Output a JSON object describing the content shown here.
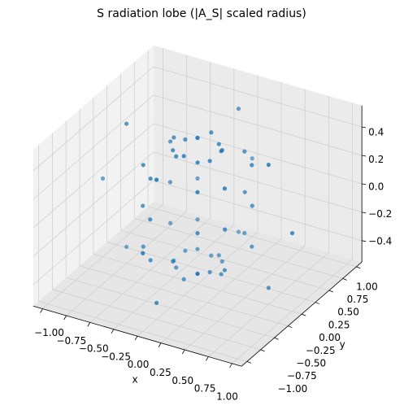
{
  "chart_data": {
    "type": "scatter3d",
    "title": "S radiation lobe (|A_S| scaled radius)",
    "xlabel": "x",
    "ylabel": "y",
    "color": "#1f77b4",
    "xlim": [
      -1.1,
      1.1
    ],
    "ylim": [
      -1.1,
      1.1
    ],
    "zlim": [
      -0.55,
      0.55
    ],
    "xticks": [
      {
        "value": -1,
        "label": "−1.00"
      },
      {
        "value": -0.75,
        "label": "−0.75"
      },
      {
        "value": -0.5,
        "label": "−0.50"
      },
      {
        "value": -0.25,
        "label": "−0.25"
      },
      {
        "value": 0,
        "label": "0.00"
      },
      {
        "value": 0.25,
        "label": "0.25"
      },
      {
        "value": 0.5,
        "label": "0.50"
      },
      {
        "value": 0.75,
        "label": "0.75"
      },
      {
        "value": 1,
        "label": "1.00"
      }
    ],
    "yticks": [
      {
        "value": -1,
        "label": "−1.00"
      },
      {
        "value": -0.75,
        "label": "−0.75"
      },
      {
        "value": -0.5,
        "label": "−0.50"
      },
      {
        "value": -0.25,
        "label": "−0.25"
      },
      {
        "value": 0,
        "label": "0.00"
      },
      {
        "value": 0.25,
        "label": "0.25"
      },
      {
        "value": 0.5,
        "label": "0.50"
      },
      {
        "value": 0.75,
        "label": "0.75"
      },
      {
        "value": 1,
        "label": "1.00"
      }
    ],
    "zticks": [
      {
        "value": -0.4,
        "label": "−0.4"
      },
      {
        "value": -0.2,
        "label": "−0.2"
      },
      {
        "value": 0,
        "label": "0.0"
      },
      {
        "value": 0.2,
        "label": "0.2"
      },
      {
        "value": 0.4,
        "label": "0.4"
      }
    ],
    "grid": true,
    "x": [
      0.25,
      0.195,
      0.113,
      0,
      -0.113,
      -0.195,
      -0.25,
      -0.195,
      -0.113,
      0,
      0.113,
      0.195,
      0.75,
      0.43,
      0.248,
      0,
      -0.248,
      -0.43,
      -0.75,
      -0.43,
      -0.248,
      0,
      0.248,
      0.43,
      1,
      0.433,
      0.25,
      0,
      -0.25,
      -0.433,
      -1,
      -0.433,
      -0.25,
      0,
      0.25,
      0.433,
      0.75,
      0.43,
      0.248,
      0,
      -0.248,
      -0.43,
      -0.75,
      -0.43,
      -0.248,
      0,
      0.248,
      0.43,
      0.25,
      0.195,
      0.113,
      0,
      -0.113,
      -0.195,
      -0.25,
      -0.195,
      -0.113,
      0,
      0.113,
      0.195
    ],
    "y": [
      0,
      0.113,
      0.195,
      0.25,
      0.195,
      0.113,
      0,
      -0.113,
      -0.195,
      -0.25,
      -0.195,
      -0.113,
      0,
      0.248,
      0.43,
      0.75,
      0.43,
      0.248,
      0,
      -0.248,
      -0.43,
      -0.75,
      -0.43,
      -0.248,
      0,
      0.25,
      0.433,
      1,
      0.433,
      0.25,
      0,
      -0.25,
      -0.433,
      -1,
      -0.433,
      -0.25,
      0,
      0.248,
      0.43,
      0.75,
      0.43,
      0.248,
      0,
      -0.248,
      -0.43,
      -0.75,
      -0.43,
      -0.248,
      0,
      0.113,
      0.195,
      0.25,
      0.195,
      0.113,
      0,
      -0.113,
      -0.195,
      -0.25,
      -0.195,
      -0.113
    ],
    "z": [
      0.433,
      0.391,
      0.391,
      0.433,
      0.391,
      0.391,
      0.433,
      0.391,
      0.391,
      0.433,
      0.391,
      0.391,
      0.433,
      0.287,
      0.287,
      0.433,
      0.287,
      0.287,
      0.433,
      0.287,
      0.287,
      0.433,
      0.287,
      0.287,
      0,
      0,
      0,
      0,
      0,
      0,
      0,
      0,
      0,
      0,
      0,
      0,
      -0.433,
      -0.287,
      -0.287,
      -0.433,
      -0.287,
      -0.287,
      -0.433,
      -0.287,
      -0.287,
      -0.433,
      -0.287,
      -0.287,
      -0.433,
      -0.391,
      -0.391,
      -0.433,
      -0.391,
      -0.391,
      -0.433,
      -0.391,
      -0.391,
      -0.433,
      -0.391,
      -0.391
    ]
  }
}
